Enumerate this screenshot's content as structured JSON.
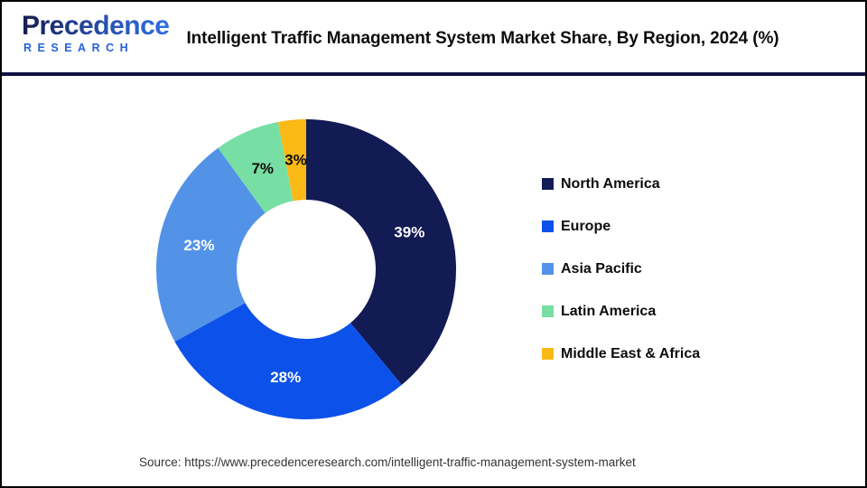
{
  "header": {
    "logo": {
      "wordmark": "Precedence",
      "subtext": "RESEARCH",
      "wordmark_color_start": "#141c4e",
      "wordmark_color_end": "#2f6fe4",
      "subtext_color": "#2461d9"
    },
    "title": "Intelligent Traffic Management System Market Share, By Region, 2024 (%)",
    "divider_color": "#131044"
  },
  "chart_data": {
    "type": "pie",
    "subtype": "donut",
    "title": "Intelligent Traffic Management System Market Share, By Region, 2024 (%)",
    "categories": [
      "North America",
      "Europe",
      "Asia Pacific",
      "Latin America",
      "Middle East & Africa"
    ],
    "values": [
      39,
      28,
      23,
      7,
      3
    ],
    "labels": [
      "39%",
      "28%",
      "23%",
      "7%",
      "3%"
    ],
    "colors": [
      "#131b55",
      "#0c51e9",
      "#5293e8",
      "#77dfa3",
      "#fbb916"
    ],
    "label_colors": [
      "#ffffff",
      "#ffffff",
      "#ffffff",
      "#0d0d0d",
      "#0d0d0d"
    ],
    "start_angle_deg": 0,
    "direction": "clockwise",
    "unit": "%",
    "legend_position": "right",
    "hole_color": "#ffffff"
  },
  "footer": {
    "source": "Source: https://www.precedenceresearch.com/intelligent-traffic-management-system-market"
  }
}
